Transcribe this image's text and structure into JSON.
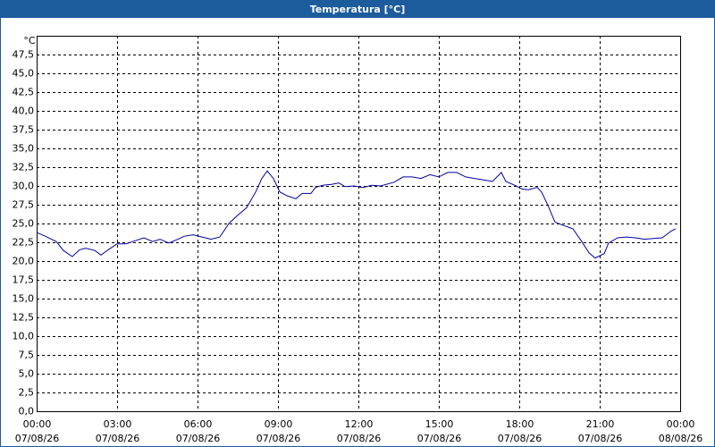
{
  "chart_data": {
    "type": "line",
    "title": "Temperatura [°C]",
    "y_unit": "°C",
    "x": [
      0,
      0.33,
      0.73,
      1.0,
      1.33,
      1.6,
      1.83,
      2.17,
      2.4,
      2.67,
      3.0,
      3.33,
      3.67,
      4.0,
      4.33,
      4.6,
      4.93,
      5.27,
      5.5,
      5.83,
      6.17,
      6.5,
      6.83,
      7.17,
      7.5,
      7.83,
      8.17,
      8.4,
      8.6,
      8.83,
      9.07,
      9.33,
      9.67,
      9.9,
      10.23,
      10.4,
      10.67,
      11.0,
      11.27,
      11.5,
      11.83,
      12.17,
      12.5,
      12.83,
      13.33,
      13.67,
      14.0,
      14.33,
      14.67,
      15.0,
      15.33,
      15.67,
      16.0,
      16.33,
      16.67,
      17.0,
      17.33,
      17.5,
      17.83,
      18.1,
      18.33,
      18.67,
      18.83,
      19.07,
      19.33,
      19.6,
      20.0,
      20.33,
      20.6,
      20.83,
      21.17,
      21.33,
      21.67,
      22.0,
      22.33,
      22.67,
      23.0,
      23.33,
      23.67,
      23.83
    ],
    "values": [
      23.8,
      23.3,
      22.6,
      21.4,
      20.6,
      21.5,
      21.7,
      21.4,
      20.8,
      21.5,
      22.3,
      22.3,
      22.7,
      23.1,
      22.6,
      22.9,
      22.4,
      22.9,
      23.3,
      23.5,
      23.2,
      22.9,
      23.2,
      25.0,
      26.1,
      27.1,
      29.2,
      31.0,
      32.0,
      31.0,
      29.2,
      28.7,
      28.3,
      29.0,
      29.0,
      29.8,
      30.1,
      30.2,
      30.4,
      29.9,
      30.0,
      29.8,
      30.1,
      30.0,
      30.5,
      31.2,
      31.2,
      31.0,
      31.5,
      31.2,
      31.8,
      31.8,
      31.2,
      31.0,
      30.8,
      30.6,
      31.8,
      30.6,
      30.1,
      29.6,
      29.5,
      29.8,
      29.2,
      27.4,
      25.2,
      24.8,
      24.3,
      22.6,
      21.1,
      20.4,
      21.0,
      22.4,
      23.1,
      23.2,
      23.1,
      22.9,
      23.0,
      23.1,
      24.0,
      24.3
    ],
    "color": "#0000a0",
    "xlim": [
      0,
      24
    ],
    "xticks": [
      {
        "value": 0,
        "label": "00:00"
      },
      {
        "value": 3,
        "label": "03:00"
      },
      {
        "value": 6,
        "label": "06:00"
      },
      {
        "value": 9,
        "label": "09:00"
      },
      {
        "value": 12,
        "label": "12:00"
      },
      {
        "value": 15,
        "label": "15:00"
      },
      {
        "value": 18,
        "label": "18:00"
      },
      {
        "value": 21,
        "label": "21:00"
      },
      {
        "value": 24,
        "label": "00:00"
      }
    ],
    "xtick_dates": [
      "07/08/26",
      "07/08/26",
      "07/08/26",
      "07/08/26",
      "07/08/26",
      "07/08/26",
      "07/08/26",
      "07/08/26",
      "08/08/26"
    ],
    "ylim": [
      0,
      50
    ],
    "yticks": [
      {
        "value": 0,
        "label": "0,0"
      },
      {
        "value": 2.5,
        "label": "2,5"
      },
      {
        "value": 5,
        "label": "5,0"
      },
      {
        "value": 7.5,
        "label": "7,5"
      },
      {
        "value": 10,
        "label": "10,0"
      },
      {
        "value": 12.5,
        "label": "12,5"
      },
      {
        "value": 15,
        "label": "15,0"
      },
      {
        "value": 17.5,
        "label": "17,5"
      },
      {
        "value": 20,
        "label": "20,0"
      },
      {
        "value": 22.5,
        "label": "22,5"
      },
      {
        "value": 25,
        "label": "25,0"
      },
      {
        "value": 27.5,
        "label": "27,5"
      },
      {
        "value": 30,
        "label": "30,0"
      },
      {
        "value": 32.5,
        "label": "32,5"
      },
      {
        "value": 35,
        "label": "35,0"
      },
      {
        "value": 37.5,
        "label": "37,5"
      },
      {
        "value": 40,
        "label": "40,0"
      },
      {
        "value": 42.5,
        "label": "42,5"
      },
      {
        "value": 45,
        "label": "45,0"
      },
      {
        "value": 47.5,
        "label": "47,5"
      }
    ],
    "grid": true
  }
}
